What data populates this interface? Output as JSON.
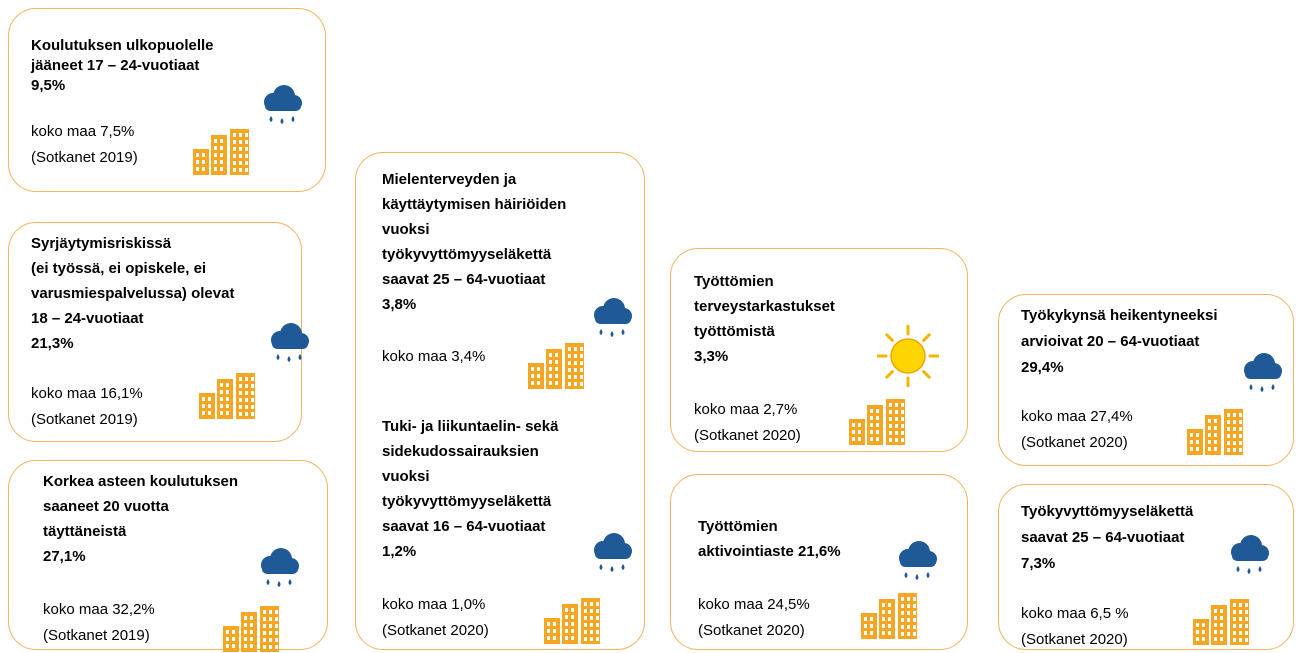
{
  "cards": [
    {
      "sections": [
        {
          "title_lines": [
            "Koulutuksen ulkopuolelle",
            "jääneet 17 – 24-vuotiaat"
          ],
          "value": "9,5%",
          "comparison": "koko maa 7,5%",
          "source": "(Sotkanet 2019)"
        }
      ]
    },
    {
      "sections": [
        {
          "title_lines": [
            "Syrjäytymisriskissä",
            "(ei työssä, ei opiskele, ei",
            "varusmiespalvelussa) olevat",
            "18 – 24-vuotiaat"
          ],
          "value": "21,3%",
          "comparison": "koko maa 16,1%",
          "source": "(Sotkanet 2019)"
        }
      ]
    },
    {
      "sections": [
        {
          "title_lines": [
            "Korkea asteen koulutuksen",
            "saaneet 20 vuotta",
            "täyttäneistä"
          ],
          "value": "27,1%",
          "comparison": "koko maa 32,2%",
          "source": "(Sotkanet 2019)"
        }
      ]
    },
    {
      "sections": [
        {
          "title_lines": [
            "Mielenterveyden ja",
            "käyttäytymisen häiriöiden",
            "vuoksi",
            "työkyvyttömyyseläkettä",
            "saavat 25 – 64-vuotiaat"
          ],
          "value": "3,8%",
          "comparison": "koko maa 3,4%"
        },
        {
          "title_lines": [
            "Tuki- ja liikuntaelin- sekä",
            "sidekudossairauksien",
            "vuoksi",
            "työkyvyttömyyseläkettä",
            "saavat 16 – 64-vuotiaat"
          ],
          "value": "1,2%",
          "comparison": "koko maa 1,0%",
          "source": "(Sotkanet 2020)"
        }
      ]
    },
    {
      "sections": [
        {
          "title_lines": [
            "Työttömien",
            "terveystarkastukset",
            "työttömistä"
          ],
          "value": "3,3%",
          "comparison": "koko maa 2,7%",
          "source": "(Sotkanet 2020)"
        }
      ]
    },
    {
      "sections": [
        {
          "title_lines": [
            "Työttömien",
            "aktivointiaste 21,6%"
          ],
          "comparison": "koko maa 24,5%",
          "source": "(Sotkanet 2020)"
        }
      ]
    },
    {
      "sections": [
        {
          "title_lines": [
            "Työkykynsä heikentyneeksi",
            "arvioivat 20 – 64-vuotiaat"
          ],
          "value": "29,4%",
          "comparison": "koko maa 27,4%",
          "source": "(Sotkanet 2020)"
        }
      ]
    },
    {
      "sections": [
        {
          "title_lines": [
            "Työkyvyttömyyseläkettä",
            "saavat 25 – 64-vuotiaat"
          ],
          "value": "7,3%",
          "comparison": "koko maa 6,5 %",
          "source": "(Sotkanet 2020)"
        }
      ]
    }
  ]
}
